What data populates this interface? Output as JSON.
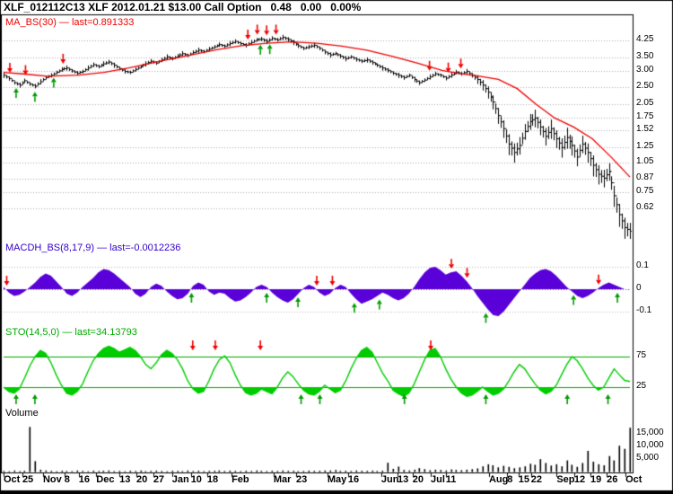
{
  "title": "XLF_012112C13 XLF 2012.01.21 $13.00 Call Option   0.48   0.00   0.00%",
  "panels": {
    "price": {
      "label": "MA_BS(30) — last=0.891333",
      "color": "#ee0000",
      "axis_labels": [
        "4.25",
        "3.50",
        "3.00",
        "2.50",
        "2.05",
        "1.75",
        "1.52",
        "1.25",
        "1.05",
        "0.87",
        "0.75",
        "0.62"
      ],
      "axis_values": [
        4.25,
        3.5,
        3.0,
        2.5,
        2.05,
        1.75,
        1.52,
        1.25,
        1.05,
        0.87,
        0.75,
        0.62
      ]
    },
    "macd": {
      "label": "MACDH_BS(8,17,9) — last=-0.0012236",
      "color": "#3300cc",
      "fill": "#5a00d8",
      "axis_labels": [
        "0.1",
        "0",
        "-0.1"
      ],
      "axis_values": [
        0.1,
        0,
        -0.1
      ]
    },
    "sto": {
      "label": "STO(14,5,0) — last=34.13793",
      "color": "#00aa00",
      "fill": "#00cc00",
      "axis_labels": [
        "75",
        "25"
      ],
      "axis_values": [
        75,
        25
      ]
    },
    "volume": {
      "label": "Volume",
      "color": "#000000",
      "axis_labels": [
        "15,000",
        "10,000",
        "5,000"
      ],
      "axis_values": [
        15000,
        10000,
        5000
      ]
    }
  },
  "signal_colors": {
    "sell": "#ee0000",
    "buy": "#009a00"
  },
  "chart_data": {
    "type": "ohlc-multi-panel",
    "x_count": 120,
    "date_labels": [
      {
        "t": "Oct",
        "f": 0.0
      },
      {
        "t": "25",
        "f": 0.03
      },
      {
        "t": "Nov",
        "f": 0.063
      },
      {
        "t": "8",
        "f": 0.097
      },
      {
        "t": "16",
        "f": 0.12
      },
      {
        "t": "Dec",
        "f": 0.148
      },
      {
        "t": "13",
        "f": 0.185
      },
      {
        "t": "20",
        "f": 0.212
      },
      {
        "t": "27",
        "f": 0.239
      },
      {
        "t": "Jan",
        "f": 0.269
      },
      {
        "t": "10",
        "f": 0.299
      },
      {
        "t": "18",
        "f": 0.325
      },
      {
        "t": "Feb",
        "f": 0.364
      },
      {
        "t": "Mar",
        "f": 0.431
      },
      {
        "t": "23",
        "f": 0.467
      },
      {
        "t": "May",
        "f": 0.517
      },
      {
        "t": "16",
        "f": 0.55
      },
      {
        "t": "Jun",
        "f": 0.603
      },
      {
        "t": "13",
        "f": 0.629
      },
      {
        "t": "20",
        "f": 0.653
      },
      {
        "t": "Jul",
        "f": 0.682
      },
      {
        "t": "11",
        "f": 0.706
      },
      {
        "t": "Aug",
        "f": 0.775
      },
      {
        "t": "8",
        "f": 0.804
      },
      {
        "t": "15",
        "f": 0.822
      },
      {
        "t": "22",
        "f": 0.842
      },
      {
        "t": "Sep",
        "f": 0.883
      },
      {
        "t": "12",
        "f": 0.911
      },
      {
        "t": "19",
        "f": 0.937
      },
      {
        "t": "26",
        "f": 0.963
      },
      {
        "t": "Oct",
        "f": 0.993
      }
    ],
    "price_panel": {
      "type": "ohlc",
      "yscale": "log",
      "ylim": [
        0.45,
        4.6
      ],
      "close": [
        2.85,
        2.75,
        2.62,
        2.55,
        2.68,
        2.58,
        2.52,
        2.65,
        2.78,
        2.85,
        2.95,
        3.05,
        3.1,
        3.0,
        2.92,
        2.98,
        3.1,
        3.22,
        3.15,
        3.25,
        3.32,
        3.2,
        3.08,
        2.98,
        2.95,
        3.05,
        3.15,
        3.25,
        3.35,
        3.28,
        3.4,
        3.52,
        3.45,
        3.55,
        3.65,
        3.58,
        3.7,
        3.8,
        3.74,
        3.85,
        3.95,
        4.05,
        3.98,
        4.1,
        4.2,
        4.1,
        4.02,
        4.15,
        4.28,
        4.32,
        4.2,
        4.35,
        4.28,
        4.4,
        4.3,
        4.15,
        4.0,
        3.88,
        3.95,
        4.02,
        3.88,
        3.72,
        3.6,
        3.66,
        3.55,
        3.45,
        3.52,
        3.42,
        3.35,
        3.4,
        3.3,
        3.2,
        3.1,
        3.02,
        2.92,
        2.85,
        2.78,
        2.85,
        2.72,
        2.62,
        2.7,
        2.8,
        2.9,
        2.85,
        2.76,
        2.86,
        2.96,
        2.9,
        2.98,
        2.85,
        2.72,
        2.55,
        2.35,
        2.1,
        1.8,
        1.55,
        1.3,
        1.18,
        1.28,
        1.5,
        1.68,
        1.75,
        1.58,
        1.42,
        1.55,
        1.38,
        1.25,
        1.4,
        1.28,
        1.12,
        1.3,
        1.18,
        1.02,
        0.92,
        0.88,
        0.95,
        0.72,
        0.58,
        0.5,
        0.48
      ],
      "spread_frac": [
        0.03,
        0.025,
        0.02,
        0.03,
        0.025,
        0.02,
        0.025,
        0.03,
        0.02,
        0.025,
        0.02,
        0.025,
        0.03,
        0.02,
        0.025,
        0.02,
        0.03,
        0.025,
        0.02,
        0.03,
        0.025,
        0.03,
        0.02,
        0.025,
        0.02,
        0.025,
        0.02,
        0.03,
        0.025,
        0.02,
        0.025,
        0.03,
        0.02,
        0.025,
        0.03,
        0.02,
        0.025,
        0.03,
        0.02,
        0.025,
        0.02,
        0.025,
        0.02,
        0.03,
        0.025,
        0.02,
        0.025,
        0.03,
        0.02,
        0.025,
        0.03,
        0.025,
        0.02,
        0.03,
        0.025,
        0.03,
        0.025,
        0.02,
        0.025,
        0.03,
        0.02,
        0.025,
        0.03,
        0.02,
        0.025,
        0.03,
        0.02,
        0.025,
        0.02,
        0.03,
        0.025,
        0.02,
        0.03,
        0.025,
        0.02,
        0.03,
        0.025,
        0.02,
        0.03,
        0.025,
        0.02,
        0.03,
        0.025,
        0.02,
        0.025,
        0.03,
        0.025,
        0.02,
        0.03,
        0.025,
        0.05,
        0.06,
        0.07,
        0.08,
        0.09,
        0.1,
        0.12,
        0.11,
        0.1,
        0.09,
        0.09,
        0.1,
        0.09,
        0.1,
        0.11,
        0.1,
        0.11,
        0.12,
        0.11,
        0.1,
        0.1,
        0.11,
        0.12,
        0.11,
        0.1,
        0.1,
        0.12,
        0.13,
        0.12,
        0.1
      ],
      "ma30": {
        "last": 0.891333,
        "f": [
          0.0,
          0.03,
          0.07,
          0.12,
          0.16,
          0.2,
          0.25,
          0.3,
          0.34,
          0.38,
          0.42,
          0.46,
          0.5,
          0.54,
          0.58,
          0.62,
          0.66,
          0.7,
          0.73,
          0.76,
          0.79,
          0.82,
          0.85,
          0.88,
          0.91,
          0.94,
          0.97,
          1.0
        ],
        "values": [
          2.95,
          2.9,
          2.82,
          2.86,
          2.95,
          3.1,
          3.35,
          3.6,
          3.82,
          4.0,
          4.12,
          4.18,
          4.12,
          3.98,
          3.8,
          3.55,
          3.28,
          3.02,
          2.9,
          2.82,
          2.72,
          2.45,
          2.05,
          1.75,
          1.58,
          1.38,
          1.12,
          0.891333
        ]
      },
      "sell_signals_f": [
        0.01,
        0.035,
        0.095,
        0.39,
        0.405,
        0.42,
        0.435,
        0.68,
        0.71,
        0.73
      ],
      "buy_signals_f": [
        0.02,
        0.05,
        0.08,
        0.41,
        0.425
      ]
    },
    "macd_panel": {
      "type": "area",
      "ylim": [
        -0.186,
        0.186
      ],
      "last": -0.0012236,
      "values": [
        0.01,
        -0.015,
        -0.03,
        -0.025,
        -0.01,
        0.01,
        0.03,
        0.055,
        0.07,
        0.06,
        0.035,
        0.01,
        -0.02,
        -0.03,
        -0.015,
        0.01,
        0.03,
        0.05,
        0.075,
        0.09,
        0.085,
        0.07,
        0.05,
        0.03,
        0.01,
        -0.02,
        -0.035,
        -0.02,
        0.01,
        0.025,
        0.015,
        -0.01,
        -0.03,
        -0.045,
        -0.04,
        -0.02,
        0.015,
        0.03,
        0.02,
        -0.01,
        -0.025,
        -0.015,
        -0.02,
        -0.04,
        -0.055,
        -0.05,
        -0.035,
        -0.015,
        0.01,
        0.02,
        0.01,
        -0.015,
        -0.035,
        -0.05,
        -0.06,
        -0.045,
        -0.02,
        0.005,
        0.02,
        0.01,
        -0.015,
        -0.03,
        -0.02,
        0.005,
        0.02,
        0.01,
        -0.02,
        -0.045,
        -0.065,
        -0.055,
        -0.045,
        -0.03,
        -0.015,
        -0.025,
        -0.04,
        -0.05,
        -0.04,
        -0.02,
        0.01,
        0.045,
        0.075,
        0.095,
        0.1,
        0.085,
        0.065,
        0.075,
        0.08,
        0.06,
        0.035,
        0.005,
        -0.03,
        -0.06,
        -0.09,
        -0.115,
        -0.12,
        -0.1,
        -0.07,
        -0.04,
        -0.01,
        0.02,
        0.05,
        0.07,
        0.085,
        0.09,
        0.08,
        0.06,
        0.035,
        0.01,
        -0.01,
        -0.03,
        -0.04,
        -0.03,
        -0.015,
        0.005,
        0.02,
        0.03,
        0.02,
        0.01,
        0.0,
        -0.0012236
      ],
      "sell_signals_f": [
        0.005,
        0.5,
        0.525,
        0.715,
        0.74,
        0.95
      ],
      "buy_signals_f": [
        0.3,
        0.42,
        0.47,
        0.56,
        0.6,
        0.77,
        0.91,
        0.98
      ]
    },
    "sto_panel": {
      "type": "line",
      "ylim": [
        0,
        100
      ],
      "hlines": [
        75,
        25
      ],
      "last": 34.13793,
      "values": [
        25,
        18,
        15,
        22,
        40,
        60,
        75,
        85,
        80,
        65,
        45,
        28,
        15,
        12,
        18,
        30,
        50,
        68,
        80,
        88,
        92,
        88,
        82,
        86,
        90,
        85,
        75,
        62,
        55,
        65,
        78,
        85,
        80,
        70,
        55,
        35,
        22,
        15,
        18,
        35,
        55,
        70,
        76,
        65,
        45,
        28,
        16,
        12,
        15,
        22,
        18,
        14,
        25,
        40,
        50,
        42,
        30,
        20,
        14,
        12,
        18,
        28,
        22,
        16,
        20,
        35,
        55,
        72,
        85,
        90,
        82,
        65,
        48,
        35,
        20,
        14,
        10,
        15,
        30,
        50,
        70,
        85,
        88,
        75,
        55,
        38,
        25,
        15,
        10,
        12,
        18,
        25,
        18,
        12,
        15,
        22,
        35,
        50,
        62,
        55,
        42,
        30,
        20,
        14,
        18,
        28,
        45,
        62,
        75,
        68,
        55,
        40,
        28,
        20,
        25,
        40,
        55,
        45,
        36,
        34.13793
      ],
      "sell_signals_f": [
        0.302,
        0.338,
        0.41,
        0.682
      ],
      "buy_signals_f": [
        0.02,
        0.05,
        0.475,
        0.505,
        0.64,
        0.77,
        0.9,
        0.965
      ]
    },
    "volume_panel": {
      "type": "bar",
      "ylim": [
        0,
        17500
      ],
      "values": [
        400,
        300,
        600,
        350,
        500,
        17500,
        4200,
        900,
        600,
        450,
        300,
        500,
        400,
        350,
        600,
        450,
        300,
        550,
        400,
        500,
        600,
        350,
        450,
        300,
        500,
        400,
        600,
        350,
        450,
        550,
        400,
        300,
        500,
        450,
        350,
        600,
        400,
        500,
        350,
        450,
        500,
        600,
        400,
        550,
        450,
        350,
        500,
        400,
        600,
        450,
        350,
        500,
        400,
        600,
        450,
        500,
        350,
        400,
        550,
        450,
        500,
        600,
        600,
        800,
        450,
        500,
        400,
        600,
        500,
        450,
        550,
        400,
        500,
        3600,
        1200,
        2100,
        800,
        600,
        900,
        1500,
        1100,
        700,
        900,
        800,
        600,
        1000,
        800,
        700,
        900,
        1100,
        1400,
        2200,
        3000,
        2600,
        1800,
        2400,
        2000,
        1500,
        1800,
        2200,
        3200,
        2800,
        5000,
        3500,
        2500,
        3000,
        2200,
        4500,
        2800,
        2000,
        3500,
        8200,
        4000,
        3000,
        2600,
        6200,
        4500,
        10200,
        9000,
        17200
      ]
    }
  }
}
